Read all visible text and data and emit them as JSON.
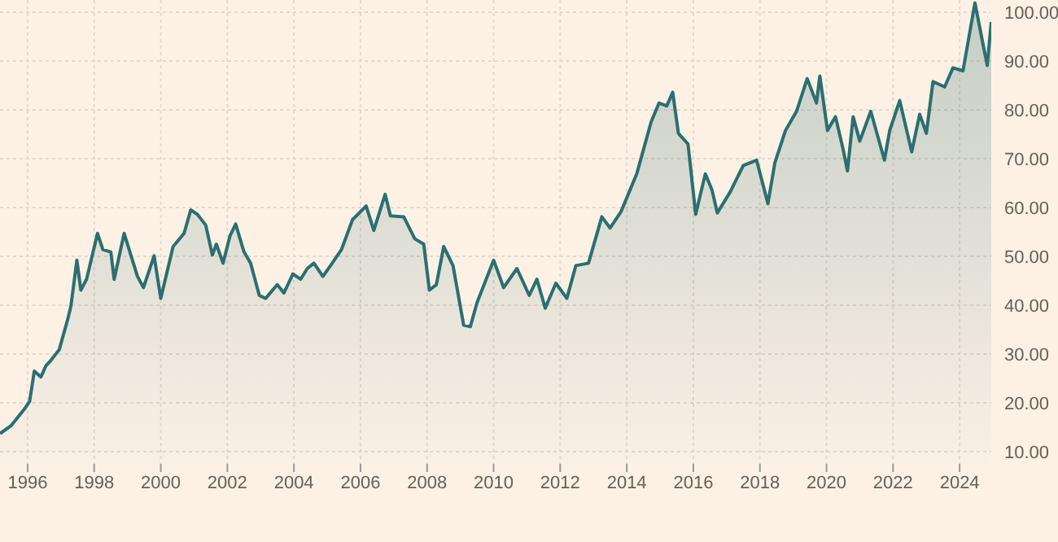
{
  "chart_data": {
    "type": "area",
    "x": [
      1995.17,
      1995.5,
      1995.9,
      1996.06,
      1996.2,
      1996.4,
      1996.55,
      1996.7,
      1996.95,
      1997.2,
      1997.3,
      1997.48,
      1997.6,
      1997.77,
      1998.1,
      1998.26,
      1998.5,
      1998.6,
      1998.9,
      1999.3,
      1999.48,
      1999.8,
      2000.0,
      2000.37,
      2000.7,
      2000.9,
      2001.1,
      2001.35,
      2001.55,
      2001.67,
      2001.87,
      2002.08,
      2002.25,
      2002.5,
      2002.7,
      2002.96,
      2003.15,
      2003.5,
      2003.7,
      2003.97,
      2004.2,
      2004.4,
      2004.6,
      2004.87,
      2005.1,
      2005.43,
      2005.76,
      2006.17,
      2006.4,
      2006.74,
      2006.9,
      2007.3,
      2007.63,
      2007.9,
      2008.07,
      2008.28,
      2008.5,
      2008.78,
      2009.1,
      2009.3,
      2009.5,
      2010.0,
      2010.3,
      2010.7,
      2011.07,
      2011.3,
      2011.55,
      2011.87,
      2012.2,
      2012.47,
      2012.85,
      2013.25,
      2013.5,
      2013.83,
      2014.3,
      2014.73,
      2014.97,
      2015.2,
      2015.38,
      2015.55,
      2015.84,
      2016.07,
      2016.36,
      2016.56,
      2016.72,
      2017.1,
      2017.5,
      2017.9,
      2018.24,
      2018.45,
      2018.77,
      2019.1,
      2019.42,
      2019.7,
      2019.8,
      2020.03,
      2020.27,
      2020.5,
      2020.63,
      2020.8,
      2021.0,
      2021.33,
      2021.74,
      2021.9,
      2022.2,
      2022.56,
      2022.8,
      2023.0,
      2023.2,
      2023.55,
      2023.8,
      2024.1,
      2024.46,
      2024.7,
      2024.83,
      2024.95
    ],
    "series": [
      {
        "color": "#2b6f70",
        "values": [
          13.7,
          15.3,
          18.7,
          20.3,
          26.5,
          25.3,
          27.6,
          28.7,
          30.9,
          37.0,
          39.8,
          49.2,
          43.1,
          45.3,
          54.7,
          51.4,
          50.9,
          45.3,
          54.7,
          45.9,
          43.6,
          50.1,
          41.4,
          52.0,
          54.7,
          59.5,
          58.6,
          56.4,
          50.3,
          52.5,
          48.6,
          54.2,
          56.6,
          50.9,
          48.6,
          42.0,
          41.4,
          44.2,
          42.5,
          46.4,
          45.3,
          47.5,
          48.6,
          45.9,
          48.1,
          51.4,
          57.5,
          60.3,
          55.3,
          62.7,
          58.3,
          58.1,
          53.6,
          52.5,
          43.1,
          44.2,
          52.0,
          48.1,
          35.9,
          35.6,
          40.5,
          49.2,
          43.6,
          47.5,
          42.0,
          45.3,
          39.4,
          44.5,
          41.4,
          48.1,
          48.6,
          58.1,
          55.8,
          59.2,
          66.9,
          77.5,
          81.4,
          80.8,
          83.6,
          75.2,
          73.0,
          58.6,
          66.9,
          63.6,
          58.9,
          63.1,
          68.6,
          69.7,
          60.8,
          69.2,
          75.8,
          79.7,
          86.4,
          81.4,
          86.9,
          75.8,
          78.6,
          71.9,
          67.5,
          78.6,
          73.6,
          79.7,
          69.7,
          75.8,
          81.9,
          71.4,
          79.1,
          75.2,
          85.8,
          84.7,
          88.6,
          88.0,
          101.9,
          93.5,
          89.1,
          98.0
        ]
      }
    ],
    "xlim": [
      1995.17,
      2024.95
    ],
    "xticks": [
      1996,
      1998,
      2000,
      2002,
      2004,
      2006,
      2008,
      2010,
      2012,
      2014,
      2016,
      2018,
      2020,
      2022,
      2024
    ],
    "ylim": [
      7.5,
      102.5
    ],
    "yticks": [
      {
        "value": 10,
        "label": "10.00"
      },
      {
        "value": 20,
        "label": "20.00"
      },
      {
        "value": 30,
        "label": "30.00"
      },
      {
        "value": 40,
        "label": "40.00"
      },
      {
        "value": 50,
        "label": "50.00"
      },
      {
        "value": 60,
        "label": "60.00"
      },
      {
        "value": 70,
        "label": "70.00"
      },
      {
        "value": 80,
        "label": "80.00"
      },
      {
        "value": 90,
        "label": "90.00"
      },
      {
        "value": 100,
        "label": "100.00"
      }
    ],
    "grid": true
  }
}
